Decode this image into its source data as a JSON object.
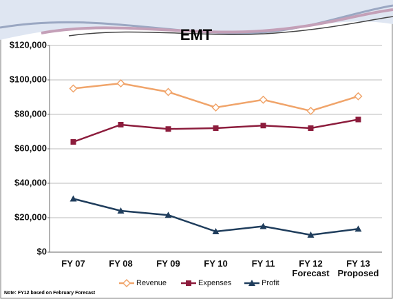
{
  "chart_data": {
    "type": "line",
    "title": "EMT",
    "note": "Note: FY12 based on February Forecast",
    "categories": [
      "FY 07",
      "FY 08",
      "FY 09",
      "FY 10",
      "FY 11",
      "FY 12\nForecast",
      "FY 13\nProposed"
    ],
    "series": [
      {
        "name": "Revenue",
        "color": "#f0a46a",
        "marker": "diamond",
        "values": [
          95000,
          98000,
          93000,
          84000,
          88500,
          82000,
          90500
        ]
      },
      {
        "name": "Expenses",
        "color": "#8c1c3c",
        "marker": "square",
        "values": [
          64000,
          74000,
          71500,
          72000,
          73500,
          72000,
          77000
        ]
      },
      {
        "name": "Profit",
        "color": "#1f3d5c",
        "marker": "triangle",
        "values": [
          31000,
          24000,
          21500,
          12000,
          15000,
          10000,
          13500
        ]
      }
    ],
    "ylim": [
      0,
      120000
    ],
    "yticks": [
      {
        "value": 0,
        "label": "$0"
      },
      {
        "value": 20000,
        "label": "$20,000"
      },
      {
        "value": 40000,
        "label": "$40,000"
      },
      {
        "value": 60000,
        "label": "$60,000"
      },
      {
        "value": 80000,
        "label": "$80,000"
      },
      {
        "value": 100000,
        "label": "$100,000"
      },
      {
        "value": 120000,
        "label": "$120,000"
      }
    ],
    "grid": true,
    "legend": "bottom"
  }
}
